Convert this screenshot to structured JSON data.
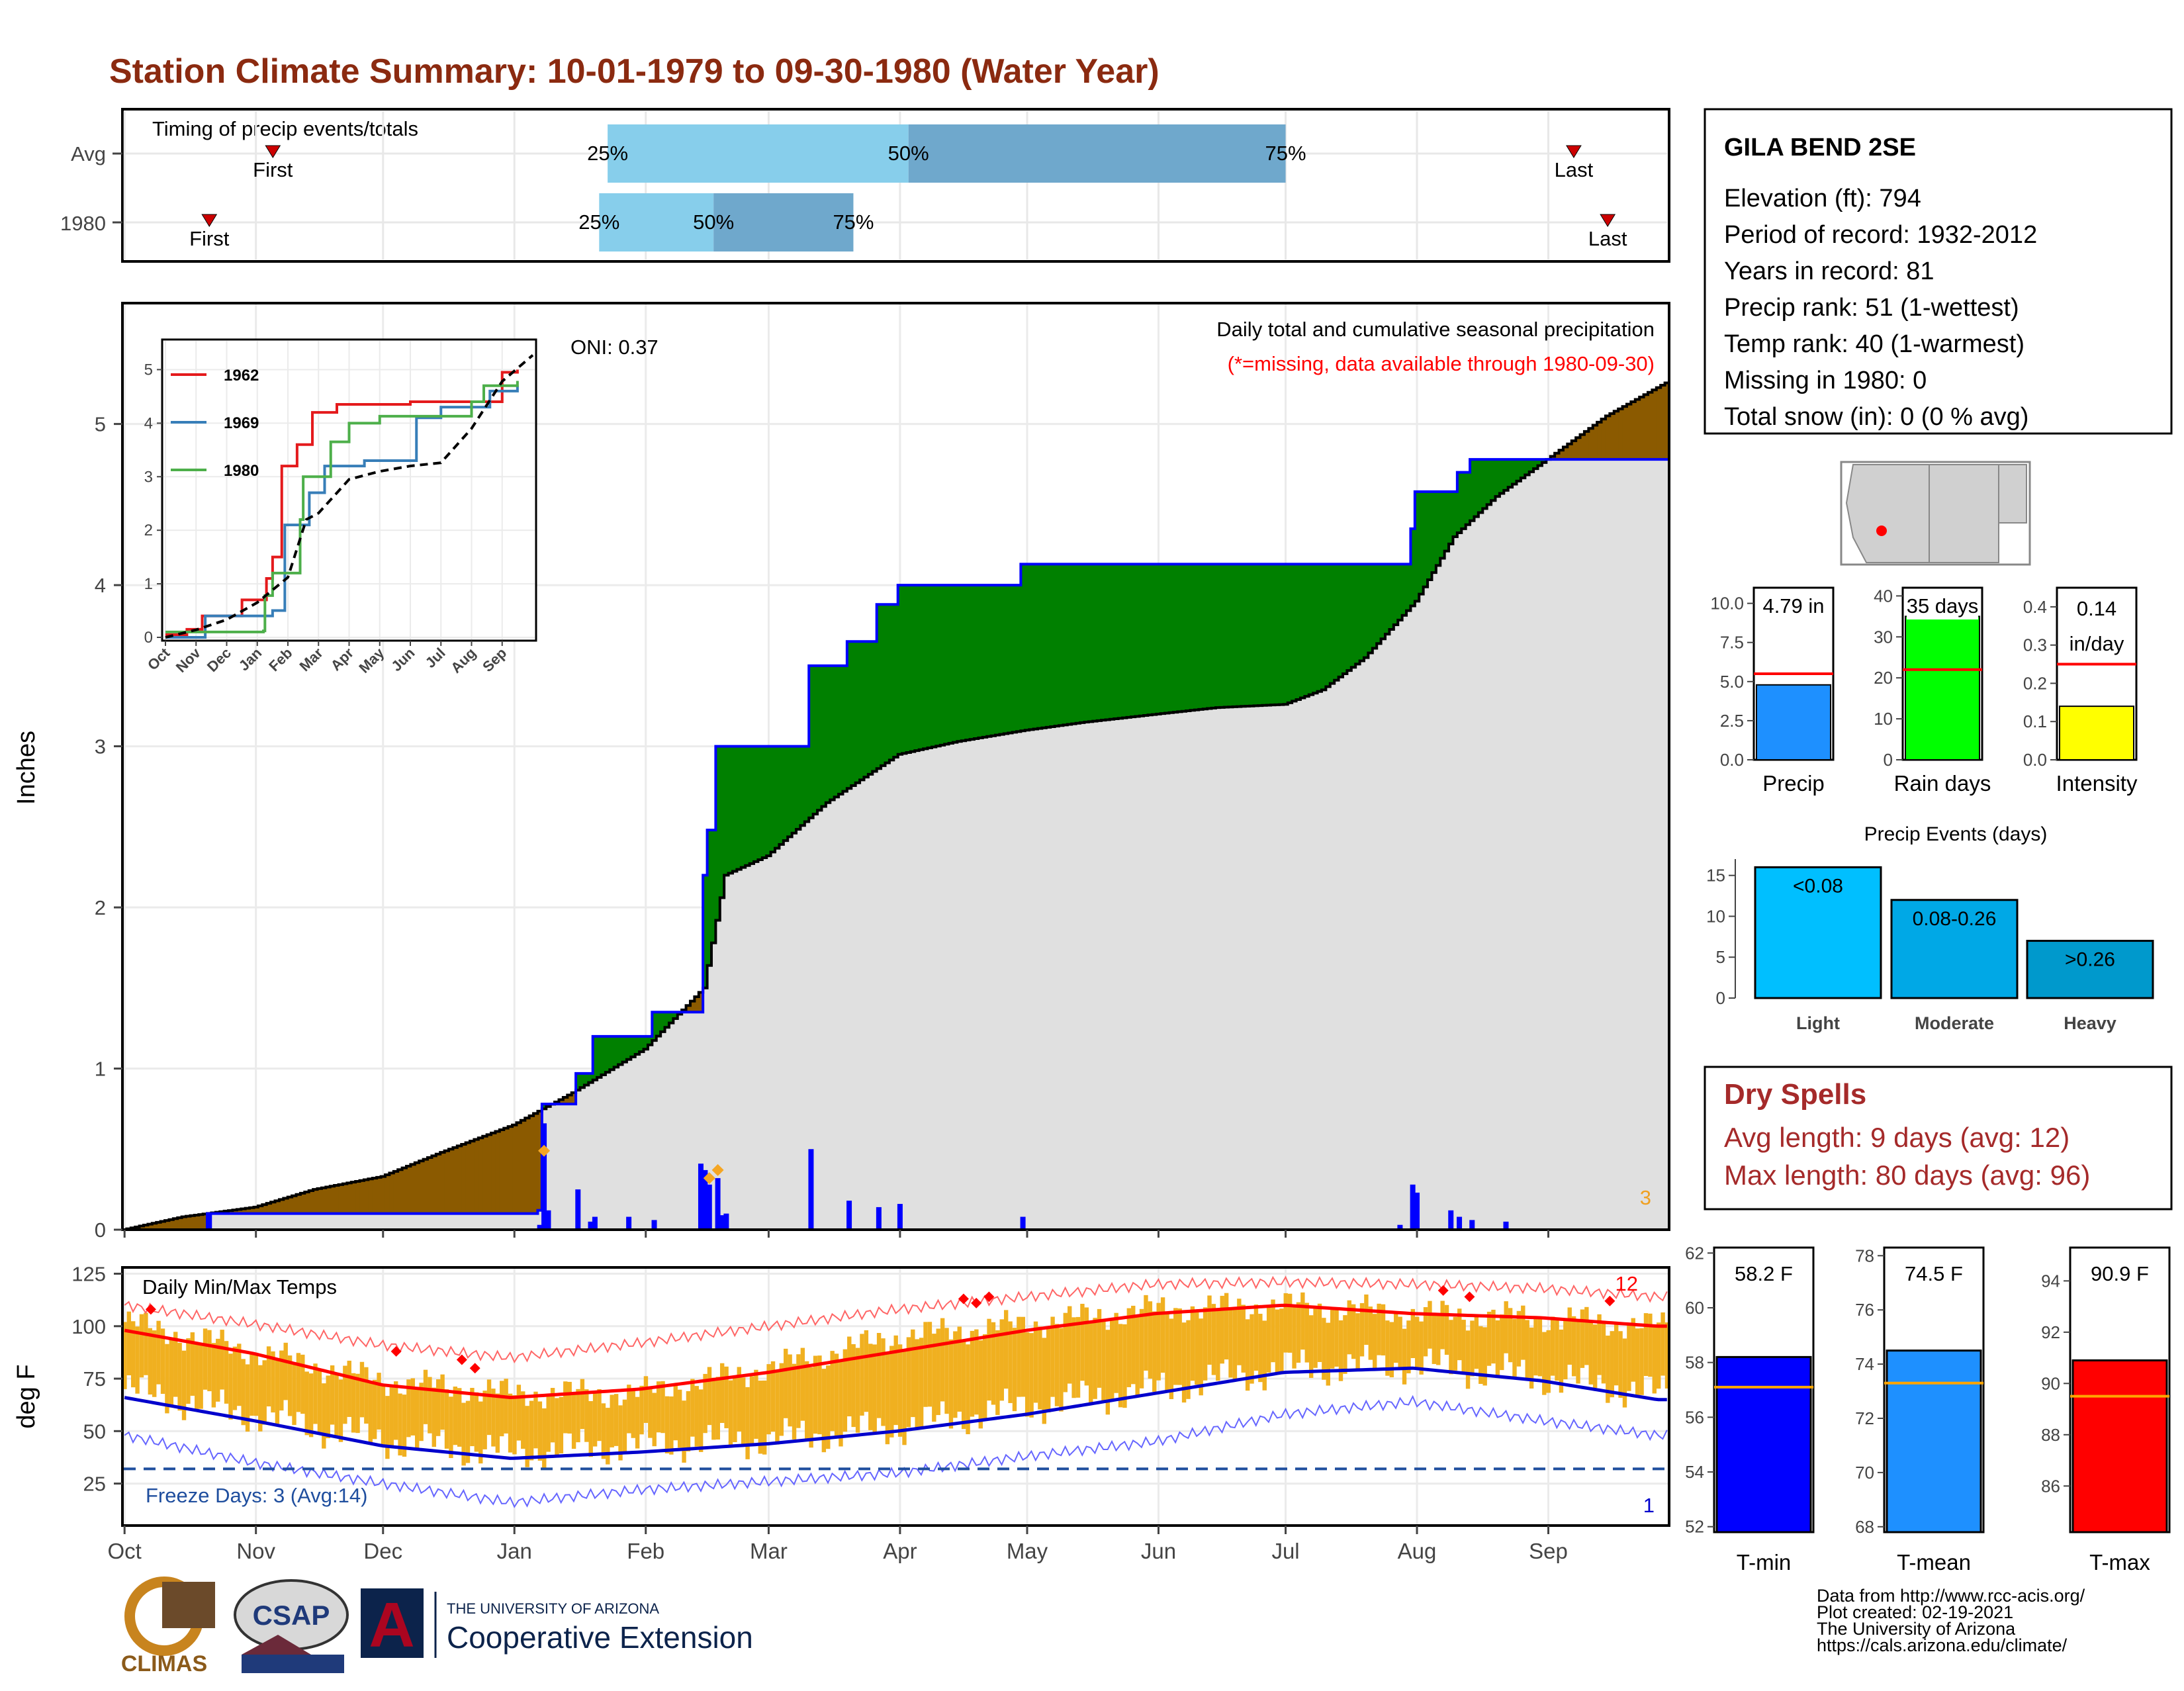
{
  "title": "Station Climate Summary: 10-01-1979 to 09-30-1980 (Water Year)",
  "colors": {
    "title": "#8b2a10",
    "brown": "#8b5a00",
    "green": "#008000",
    "grey_fill": "#e0e0e0",
    "blue": "#0000ff",
    "orange": "#f0b020",
    "red": "#ff0000",
    "light_blue": "#87ceeb",
    "mid_blue": "#6fa8cc",
    "dry_red": "#a52a2a",
    "avg_orange": "#ffa500"
  },
  "timing": {
    "caption": "Timing of precip events/totals",
    "rows": [
      {
        "label": "Avg",
        "first_date": "1979-11-05",
        "p25_date": "1980-01-23",
        "p50_date": "1980-04-03",
        "p75_date": "1980-07-01",
        "last_date": "1980-09-07"
      },
      {
        "label": "1980",
        "first_date": "1979-10-21",
        "p25_date": "1980-01-21",
        "p50_date": "1980-02-17",
        "p75_date": "1980-03-21",
        "last_date": "1980-09-15"
      }
    ],
    "pct_labels": [
      "25%",
      "50%",
      "75%"
    ],
    "first_label": "First",
    "last_label": "Last"
  },
  "station": {
    "name": "GILA BEND 2SE",
    "lines": [
      "Elevation (ft): 794",
      "Period of record: 1932-2012",
      "Years in record: 81",
      "Precip rank: 51 (1-wettest)",
      "Temp rank: 40 (1-warmest)",
      "Missing in 1980: 0",
      "Total snow (in): 0 (0 % avg)"
    ]
  },
  "dry_spells": {
    "title": "Dry Spells",
    "avg_line": "Avg length: 9 days (avg: 12)",
    "max_line": "Max length: 80 days (avg: 96)"
  },
  "credits": [
    "Data from http://www.rcc-acis.org/",
    "Plot created: 02-19-2021",
    "The University of Arizona",
    "https://cals.arizona.edu/climate/"
  ],
  "logos": {
    "climas": "CLIMAS",
    "csap": "CSAP",
    "ua_top": "THE UNIVERSITY OF ARIZONA",
    "ua_bottom": "Cooperative Extension"
  },
  "chart_data": [
    {
      "id": "precip",
      "type": "area",
      "title": "Daily total and cumulative seasonal precipitation",
      "subtitle": "(*=missing, data available through 1980-09-30)",
      "ylabel": "Inches",
      "ylim": [
        0,
        5.75
      ],
      "yticks": [
        0,
        1,
        2,
        3,
        4,
        5
      ],
      "oni": "ONI: 0.37",
      "corner_count": "3",
      "cum_avg": [
        [
          "1979-10-01",
          0
        ],
        [
          "1979-10-15",
          0.08
        ],
        [
          "1979-11-01",
          0.14
        ],
        [
          "1979-11-15",
          0.25
        ],
        [
          "1979-12-01",
          0.33
        ],
        [
          "1979-12-15",
          0.48
        ],
        [
          "1980-01-01",
          0.65
        ],
        [
          "1980-01-15",
          0.85
        ],
        [
          "1980-02-01",
          1.12
        ],
        [
          "1980-02-15",
          1.5
        ],
        [
          "1980-02-20",
          2.2
        ],
        [
          "1980-03-01",
          2.32
        ],
        [
          "1980-03-15",
          2.65
        ],
        [
          "1980-04-01",
          2.95
        ],
        [
          "1980-04-15",
          3.03
        ],
        [
          "1980-05-01",
          3.1
        ],
        [
          "1980-05-15",
          3.15
        ],
        [
          "1980-06-01",
          3.2
        ],
        [
          "1980-06-15",
          3.24
        ],
        [
          "1980-07-01",
          3.26
        ],
        [
          "1980-07-10",
          3.35
        ],
        [
          "1980-07-20",
          3.55
        ],
        [
          "1980-08-01",
          3.9
        ],
        [
          "1980-08-10",
          4.3
        ],
        [
          "1980-08-20",
          4.55
        ],
        [
          "1980-09-01",
          4.78
        ],
        [
          "1980-09-15",
          5.05
        ],
        [
          "1980-09-30",
          5.27
        ]
      ],
      "cum_1980": [
        [
          "1979-10-01",
          0
        ],
        [
          "1979-10-21",
          0.1
        ],
        [
          "1980-01-07",
          0.12
        ],
        [
          "1980-01-08",
          0.78
        ],
        [
          "1980-01-16",
          0.97
        ],
        [
          "1980-01-20",
          1.2
        ],
        [
          "1980-02-03",
          1.35
        ],
        [
          "1980-02-15",
          2.2
        ],
        [
          "1980-02-16",
          2.48
        ],
        [
          "1980-02-18",
          3.0
        ],
        [
          "1980-03-11",
          3.5
        ],
        [
          "1980-03-20",
          3.65
        ],
        [
          "1980-03-27",
          3.88
        ],
        [
          "1980-04-01",
          4.0
        ],
        [
          "1980-04-30",
          4.13
        ],
        [
          "1980-07-31",
          4.35
        ],
        [
          "1980-08-01",
          4.58
        ],
        [
          "1980-08-11",
          4.7
        ],
        [
          "1980-08-14",
          4.78
        ],
        [
          "1980-09-30",
          4.79
        ]
      ],
      "daily_1980": [
        [
          "1979-10-21",
          0.1
        ],
        [
          "1980-01-07",
          0.03
        ],
        [
          "1980-01-08",
          0.66
        ],
        [
          "1980-01-09",
          0.12
        ],
        [
          "1980-01-16",
          0.25
        ],
        [
          "1980-01-19",
          0.05
        ],
        [
          "1980-01-20",
          0.08
        ],
        [
          "1980-01-28",
          0.08
        ],
        [
          "1980-02-03",
          0.06
        ],
        [
          "1980-02-14",
          0.41
        ],
        [
          "1980-02-15",
          0.37
        ],
        [
          "1980-02-16",
          0.28
        ],
        [
          "1980-02-18",
          0.32
        ],
        [
          "1980-02-19",
          0.09
        ],
        [
          "1980-02-20",
          0.1
        ],
        [
          "1980-03-11",
          0.5
        ],
        [
          "1980-03-20",
          0.18
        ],
        [
          "1980-03-27",
          0.14
        ],
        [
          "1980-04-01",
          0.16
        ],
        [
          "1980-04-30",
          0.08
        ],
        [
          "1980-07-28",
          0.03
        ],
        [
          "1980-07-31",
          0.28
        ],
        [
          "1980-08-01",
          0.23
        ],
        [
          "1980-08-09",
          0.12
        ],
        [
          "1980-08-11",
          0.08
        ],
        [
          "1980-08-14",
          0.06
        ],
        [
          "1980-08-22",
          0.05
        ]
      ],
      "markers_orange": [
        [
          "1980-01-08",
          0.49
        ],
        [
          "1980-02-16",
          0.32
        ],
        [
          "1980-02-18",
          0.37
        ]
      ],
      "inset": {
        "yticks": [
          0,
          1,
          2,
          3,
          4,
          5
        ],
        "ylim": [
          0,
          5.5
        ],
        "xticks": [
          "Oct",
          "Nov",
          "Dec",
          "Jan",
          "Feb",
          "Mar",
          "Apr",
          "May",
          "Jun",
          "Jul",
          "Aug",
          "Sep"
        ],
        "series": [
          {
            "name": "1962",
            "color": "#e41a1c",
            "points": [
              [
                0,
                0.05
              ],
              [
                0.7,
                0.15
              ],
              [
                1.2,
                0.4
              ],
              [
                2.5,
                0.7
              ],
              [
                3.3,
                1.1
              ],
              [
                3.5,
                1.5
              ],
              [
                3.8,
                3.2
              ],
              [
                4.3,
                3.6
              ],
              [
                4.8,
                4.2
              ],
              [
                5.6,
                4.35
              ],
              [
                8.0,
                4.4
              ],
              [
                11.0,
                4.95
              ],
              [
                11.5,
                5.0
              ]
            ]
          },
          {
            "name": "1969",
            "color": "#377eb8",
            "points": [
              [
                0,
                0.0
              ],
              [
                1.3,
                0.4
              ],
              [
                3.5,
                0.5
              ],
              [
                3.9,
                2.1
              ],
              [
                4.7,
                2.7
              ],
              [
                5.2,
                3.2
              ],
              [
                6.5,
                3.3
              ],
              [
                8.2,
                4.1
              ],
              [
                9.0,
                4.3
              ],
              [
                10.6,
                4.6
              ],
              [
                11.5,
                4.7
              ]
            ]
          },
          {
            "name": "1980",
            "color": "#4daf4a",
            "points": [
              [
                0,
                0.1
              ],
              [
                3.2,
                0.12
              ],
              [
                3.25,
                0.78
              ],
              [
                3.5,
                1.2
              ],
              [
                4.4,
                2.2
              ],
              [
                4.5,
                3.0
              ],
              [
                5.4,
                3.65
              ],
              [
                6.0,
                4.0
              ],
              [
                7.0,
                4.13
              ],
              [
                10.0,
                4.4
              ],
              [
                10.4,
                4.7
              ],
              [
                11.5,
                4.79
              ]
            ]
          },
          {
            "name": "avg",
            "color": "#000000",
            "dashed": true,
            "points": [
              [
                0,
                0
              ],
              [
                1,
                0.14
              ],
              [
                2,
                0.33
              ],
              [
                3,
                0.65
              ],
              [
                4,
                1.12
              ],
              [
                4.6,
                2.2
              ],
              [
                5,
                2.32
              ],
              [
                6,
                2.95
              ],
              [
                7,
                3.1
              ],
              [
                8,
                3.2
              ],
              [
                9,
                3.26
              ],
              [
                10,
                3.9
              ],
              [
                11,
                4.78
              ],
              [
                12,
                5.27
              ]
            ]
          }
        ]
      }
    },
    {
      "id": "temps",
      "type": "line",
      "title": "Daily Min/Max Temps",
      "ylabel": "deg F",
      "ylim": [
        5,
        128
      ],
      "yticks": [
        25,
        50,
        75,
        100,
        125
      ],
      "freeze_line": 32,
      "freeze_label": "Freeze Days: 3 (Avg:14)",
      "count_hot": "12",
      "count_cold": "1",
      "xticks": [
        "Oct",
        "Nov",
        "Dec",
        "Jan",
        "Feb",
        "Mar",
        "Apr",
        "May",
        "Jun",
        "Jul",
        "Aug",
        "Sep"
      ],
      "avg_max": [
        [
          0,
          98
        ],
        [
          1,
          87
        ],
        [
          2,
          72
        ],
        [
          3,
          66
        ],
        [
          4,
          70
        ],
        [
          5,
          78
        ],
        [
          6,
          88
        ],
        [
          7,
          98
        ],
        [
          8,
          106
        ],
        [
          9,
          110
        ],
        [
          10,
          106
        ],
        [
          11,
          104
        ],
        [
          11.9,
          100
        ]
      ],
      "avg_min": [
        [
          0,
          66
        ],
        [
          1,
          55
        ],
        [
          2,
          43
        ],
        [
          3,
          37
        ],
        [
          4,
          40
        ],
        [
          5,
          44
        ],
        [
          6,
          50
        ],
        [
          7,
          58
        ],
        [
          8,
          68
        ],
        [
          9,
          78
        ],
        [
          10,
          80
        ],
        [
          11,
          74
        ],
        [
          11.9,
          65
        ]
      ],
      "obs_max": [
        [
          0,
          102
        ],
        [
          1,
          88
        ],
        [
          2,
          74
        ],
        [
          3,
          68
        ],
        [
          4,
          68
        ],
        [
          5,
          80
        ],
        [
          6,
          95
        ],
        [
          7,
          101
        ],
        [
          8,
          108
        ],
        [
          9,
          110
        ],
        [
          10,
          106
        ],
        [
          11,
          104
        ],
        [
          11.9,
          100
        ]
      ],
      "obs_min": [
        [
          0,
          70
        ],
        [
          1,
          58
        ],
        [
          2,
          46
        ],
        [
          3,
          40
        ],
        [
          4,
          44
        ],
        [
          5,
          46
        ],
        [
          6,
          52
        ],
        [
          7,
          62
        ],
        [
          8,
          70
        ],
        [
          9,
          80
        ],
        [
          10,
          82
        ],
        [
          11,
          76
        ],
        [
          11.9,
          68
        ]
      ],
      "record_max": [
        [
          0,
          110
        ],
        [
          1,
          101
        ],
        [
          2,
          91
        ],
        [
          3,
          85
        ],
        [
          4,
          92
        ],
        [
          5,
          100
        ],
        [
          6,
          108
        ],
        [
          7,
          114
        ],
        [
          8,
          120
        ],
        [
          9,
          121
        ],
        [
          10,
          120
        ],
        [
          11,
          118
        ],
        [
          11.9,
          114
        ]
      ],
      "record_min": [
        [
          0,
          48
        ],
        [
          1,
          35
        ],
        [
          2,
          25
        ],
        [
          3,
          16
        ],
        [
          4,
          22
        ],
        [
          5,
          26
        ],
        [
          6,
          30
        ],
        [
          7,
          38
        ],
        [
          8,
          45
        ],
        [
          9,
          58
        ],
        [
          10,
          64
        ],
        [
          11,
          55
        ],
        [
          11.9,
          48
        ]
      ],
      "hot_markers": [
        [
          0.2,
          108
        ],
        [
          2.1,
          88
        ],
        [
          2.6,
          84
        ],
        [
          2.7,
          80
        ],
        [
          6.5,
          113
        ],
        [
          6.6,
          111
        ],
        [
          6.7,
          114
        ],
        [
          10.2,
          117
        ],
        [
          10.4,
          114
        ],
        [
          11.5,
          112
        ]
      ]
    },
    {
      "id": "precip_bars",
      "type": "bar",
      "categories": [
        "Precip",
        "Rain days",
        "Intensity"
      ],
      "values": [
        4.79,
        35,
        0.14
      ],
      "averages": [
        5.5,
        22,
        0.25
      ],
      "labels": [
        "4.79 in",
        "35 days",
        "0.14\nin/day"
      ],
      "ylims": [
        [
          0,
          11
        ],
        [
          0,
          42
        ],
        [
          0,
          0.45
        ]
      ],
      "yticks": [
        [
          "0.0",
          "2.5",
          "5.0",
          "7.5",
          "10.0"
        ],
        [
          "0",
          "10",
          "20",
          "30",
          "40"
        ],
        [
          "0.0",
          "0.1",
          "0.2",
          "0.3",
          "0.4"
        ]
      ],
      "ytick_values": [
        [
          0,
          2.5,
          5,
          7.5,
          10
        ],
        [
          0,
          10,
          20,
          30,
          40
        ],
        [
          0,
          0.1,
          0.2,
          0.3,
          0.4
        ]
      ],
      "bar_colors": [
        "#1e90ff",
        "#00ff00",
        "#ffff00"
      ]
    },
    {
      "id": "precip_events",
      "type": "bar",
      "title": "Precip Events (days)",
      "categories": [
        "Light",
        "Moderate",
        "Heavy"
      ],
      "values": [
        16,
        12,
        7
      ],
      "labels": [
        "<0.08",
        "0.08-0.26",
        ">0.26"
      ],
      "ylim": [
        0,
        17
      ],
      "yticks": [
        0,
        5,
        10,
        15
      ],
      "bar_colors": [
        "#00bfff",
        "#00a8e6",
        "#0099cc"
      ]
    },
    {
      "id": "temp_bars",
      "type": "bar",
      "categories": [
        "T-min",
        "T-mean",
        "T-max"
      ],
      "values": [
        58.2,
        74.5,
        90.9
      ],
      "averages": [
        57.1,
        73.3,
        89.5
      ],
      "labels": [
        "58.2 F",
        "74.5 F",
        "90.9 F"
      ],
      "ylims": [
        [
          51.8,
          62.2
        ],
        [
          67.8,
          78.3
        ],
        [
          84.2,
          95.3
        ]
      ],
      "yticks": [
        [
          "52",
          "54",
          "56",
          "58",
          "60",
          "62"
        ],
        [
          "68",
          "70",
          "72",
          "74",
          "76",
          "78"
        ],
        [
          "86",
          "88",
          "90",
          "92",
          "94"
        ]
      ],
      "ytick_values": [
        [
          52,
          54,
          56,
          58,
          60,
          62
        ],
        [
          68,
          70,
          72,
          74,
          76,
          78
        ],
        [
          86,
          88,
          90,
          92,
          94
        ]
      ],
      "bar_colors": [
        "#0000ff",
        "#1e90ff",
        "#ff0000"
      ]
    }
  ]
}
